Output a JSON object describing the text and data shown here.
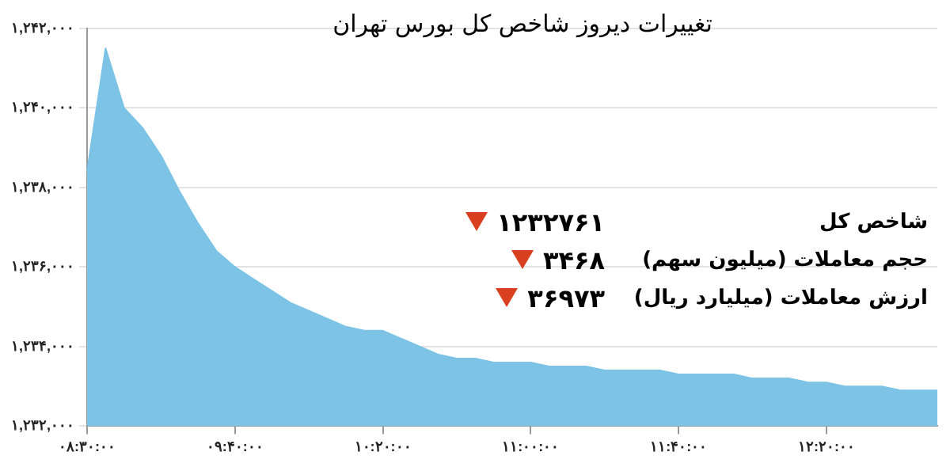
{
  "chart_data": {
    "type": "area",
    "title": "تغییرات دیروز شاخص کل بورس تهران",
    "categories": [
      "۰۸:۳۰:۰۰",
      null,
      null,
      null,
      null,
      null,
      null,
      null,
      "۰۹:۴۰:۰۰",
      null,
      null,
      null,
      null,
      null,
      null,
      null,
      "۱۰:۲۰:۰۰",
      null,
      null,
      null,
      null,
      null,
      null,
      null,
      "۱۱:۰۰:۰۰",
      null,
      null,
      null,
      null,
      null,
      null,
      null,
      "۱۱:۴۰:۰۰",
      null,
      null,
      null,
      null,
      null,
      null,
      null,
      "۱۲:۲۰:۰۰",
      null,
      null,
      null,
      null,
      null,
      null
    ],
    "series": [
      {
        "color": "#7cc3e6",
        "values": [
          1238400,
          1241500,
          1240000,
          1239500,
          1238800,
          1237900,
          1237100,
          1236400,
          1236000,
          1235700,
          1235400,
          1235100,
          1234900,
          1234700,
          1234500,
          1234400,
          1234400,
          1234200,
          1234000,
          1233800,
          1233700,
          1233700,
          1233600,
          1233600,
          1233600,
          1233500,
          1233500,
          1233500,
          1233400,
          1233400,
          1233400,
          1233400,
          1233300,
          1233300,
          1233300,
          1233300,
          1233200,
          1233200,
          1233200,
          1233100,
          1233100,
          1233000,
          1233000,
          1233000,
          1232900,
          1232900,
          1232900
        ]
      }
    ],
    "ylim": [
      1232000,
      1242000
    ],
    "yticks": [
      {
        "value": 1232000,
        "label": "۱,۲۳۲,۰۰۰"
      },
      {
        "value": 1234000,
        "label": "۱,۲۳۴,۰۰۰"
      },
      {
        "value": 1236000,
        "label": "۱,۲۳۶,۰۰۰"
      },
      {
        "value": 1238000,
        "label": "۱,۲۳۸,۰۰۰"
      },
      {
        "value": 1240000,
        "label": "۱,۲۴۰,۰۰۰"
      },
      {
        "value": 1242000,
        "label": "۱,۲۴۲,۰۰۰"
      }
    ],
    "annotations": [
      "شاخص کل",
      "۱۲۳۲۷۶۱",
      "حجم معاملات (میلیون سهم)",
      "۳۴۶۸",
      "ارزش معاملات (میلیارد ریال)",
      "۳۶۹۷۳"
    ],
    "grid": "y",
    "legend": false,
    "marker": "none"
  }
}
